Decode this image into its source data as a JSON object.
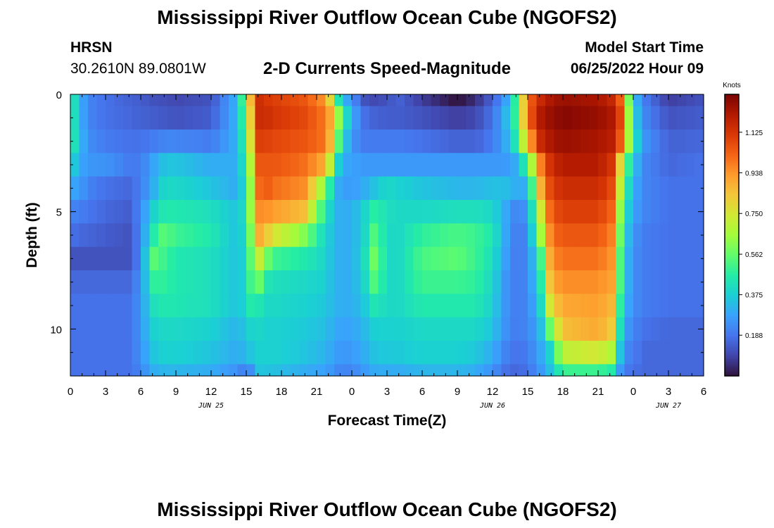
{
  "page": {
    "title_top": "Mississippi River Outflow Ocean Cube (NGOFS2)",
    "title_bottom": "Mississippi River Outflow Ocean Cube (NGOFS2)",
    "station": "HRSN",
    "coordinates": "30.2610N  89.0801W",
    "subtitle": "2-D Currents Speed-Magnitude",
    "model_start_label": "Model Start Time",
    "model_start_value": "06/25/2022 Hour 09"
  },
  "chart_data": {
    "type": "heatmap",
    "title": "2-D Currents Speed-Magnitude",
    "xlabel": "Forecast Time(Z)",
    "ylabel": "Depth (ft)",
    "x_unit": "hours since 06/25 00Z",
    "xlim": [
      0,
      54
    ],
    "ylim": [
      0,
      12
    ],
    "y_inverted": true,
    "x_ticks": [
      {
        "x": 0,
        "label": "0"
      },
      {
        "x": 3,
        "label": "3"
      },
      {
        "x": 6,
        "label": "6"
      },
      {
        "x": 9,
        "label": "9"
      },
      {
        "x": 12,
        "label": "12"
      },
      {
        "x": 15,
        "label": "15"
      },
      {
        "x": 18,
        "label": "18"
      },
      {
        "x": 21,
        "label": "21"
      },
      {
        "x": 24,
        "label": "0"
      },
      {
        "x": 27,
        "label": "3"
      },
      {
        "x": 30,
        "label": "6"
      },
      {
        "x": 33,
        "label": "9"
      },
      {
        "x": 36,
        "label": "12"
      },
      {
        "x": 39,
        "label": "15"
      },
      {
        "x": 42,
        "label": "18"
      },
      {
        "x": 45,
        "label": "21"
      },
      {
        "x": 48,
        "label": "0"
      },
      {
        "x": 51,
        "label": "3"
      },
      {
        "x": 54,
        "label": "6"
      }
    ],
    "date_labels": [
      {
        "x": 12,
        "label": "JUN 25"
      },
      {
        "x": 36,
        "label": "JUN 26"
      },
      {
        "x": 51,
        "label": "JUN 27"
      }
    ],
    "y_ticks": [
      {
        "y": 0,
        "label": "0"
      },
      {
        "y": 5,
        "label": "5"
      },
      {
        "y": 10,
        "label": "10"
      }
    ],
    "colorbar": {
      "unit": "Knots",
      "min": 0,
      "max": 1.3,
      "ticks": [
        "0.188",
        "0.375",
        "0.562",
        "0.750",
        "0.938",
        "1.125"
      ],
      "colormap": [
        "#30123b",
        "#4145ab",
        "#4675ed",
        "#39a2fc",
        "#1bcfd4",
        "#24eca6",
        "#61fc6c",
        "#a4fc3b",
        "#d1e834",
        "#f3c63a",
        "#fe9b2d",
        "#f36315",
        "#d93806",
        "#b11901",
        "#7a0402"
      ]
    },
    "depth_layers": [
      0,
      1,
      2,
      3,
      4,
      5,
      6,
      7,
      8,
      9,
      10,
      11,
      12
    ],
    "time_keyframes": [
      0,
      1,
      2,
      3,
      5,
      6,
      7,
      8,
      9,
      12,
      14,
      15,
      15.5,
      16,
      16.5,
      17.5,
      20,
      21.5,
      22.5,
      23,
      24,
      25,
      26,
      27,
      28,
      30,
      33,
      34.5,
      36,
      37,
      38,
      39,
      40,
      41,
      42,
      45,
      46.5,
      47,
      48,
      49,
      51,
      54
    ],
    "speed_grid": [
      [
        0.5,
        0.28,
        0.2,
        0.18,
        0.15,
        0.14,
        0.12,
        0.11,
        0.1,
        0.12,
        0.3,
        0.6,
        0.95,
        1.15,
        1.12,
        1.1,
        1.05,
        0.95,
        0.7,
        0.35,
        0.25,
        0.12,
        0.1,
        0.12,
        0.15,
        0.08,
        0.0,
        0.05,
        0.15,
        0.25,
        0.5,
        1.0,
        1.15,
        1.22,
        1.25,
        1.22,
        1.15,
        1.0,
        0.35,
        0.2,
        0.08,
        0.12
      ],
      [
        0.5,
        0.28,
        0.2,
        0.18,
        0.16,
        0.15,
        0.14,
        0.13,
        0.12,
        0.14,
        0.3,
        0.55,
        0.9,
        1.15,
        1.15,
        1.12,
        1.08,
        1.0,
        0.85,
        0.55,
        0.3,
        0.18,
        0.15,
        0.14,
        0.14,
        0.12,
        0.08,
        0.1,
        0.18,
        0.3,
        0.5,
        1.0,
        1.2,
        1.25,
        1.28,
        1.25,
        1.2,
        1.05,
        0.4,
        0.22,
        0.12,
        0.14
      ],
      [
        0.5,
        0.3,
        0.22,
        0.2,
        0.18,
        0.18,
        0.2,
        0.22,
        0.22,
        0.2,
        0.3,
        0.5,
        0.85,
        1.1,
        1.1,
        1.08,
        1.05,
        1.0,
        0.8,
        0.45,
        0.25,
        0.2,
        0.2,
        0.2,
        0.2,
        0.18,
        0.15,
        0.15,
        0.2,
        0.28,
        0.45,
        0.85,
        1.15,
        1.22,
        1.25,
        1.22,
        1.18,
        1.0,
        0.45,
        0.25,
        0.15,
        0.16
      ],
      [
        0.4,
        0.28,
        0.25,
        0.25,
        0.2,
        0.2,
        0.28,
        0.35,
        0.35,
        0.3,
        0.3,
        0.45,
        0.75,
        1.05,
        1.05,
        1.05,
        1.0,
        0.9,
        0.6,
        0.3,
        0.28,
        0.26,
        0.26,
        0.26,
        0.26,
        0.26,
        0.26,
        0.26,
        0.26,
        0.26,
        0.3,
        0.5,
        0.95,
        1.15,
        1.2,
        1.2,
        1.1,
        0.7,
        0.35,
        0.22,
        0.16,
        0.18
      ],
      [
        0.3,
        0.25,
        0.2,
        0.18,
        0.16,
        0.2,
        0.3,
        0.4,
        0.4,
        0.35,
        0.3,
        0.4,
        0.7,
        1.0,
        1.05,
        1.0,
        0.95,
        0.65,
        0.35,
        0.28,
        0.26,
        0.3,
        0.35,
        0.4,
        0.38,
        0.35,
        0.32,
        0.32,
        0.34,
        0.34,
        0.3,
        0.3,
        0.85,
        1.1,
        1.15,
        1.15,
        1.05,
        0.6,
        0.3,
        0.22,
        0.18,
        0.18
      ],
      [
        0.22,
        0.2,
        0.18,
        0.16,
        0.14,
        0.22,
        0.38,
        0.45,
        0.45,
        0.42,
        0.35,
        0.42,
        0.7,
        0.95,
        0.95,
        0.92,
        0.85,
        0.5,
        0.32,
        0.3,
        0.3,
        0.38,
        0.48,
        0.42,
        0.4,
        0.4,
        0.42,
        0.42,
        0.4,
        0.3,
        0.22,
        0.25,
        0.7,
        1.05,
        1.1,
        1.1,
        1.0,
        0.5,
        0.28,
        0.22,
        0.18,
        0.18
      ],
      [
        0.18,
        0.16,
        0.15,
        0.14,
        0.12,
        0.22,
        0.45,
        0.55,
        0.5,
        0.45,
        0.35,
        0.4,
        0.65,
        0.9,
        0.85,
        0.75,
        0.6,
        0.42,
        0.32,
        0.3,
        0.3,
        0.38,
        0.55,
        0.4,
        0.4,
        0.48,
        0.52,
        0.5,
        0.45,
        0.3,
        0.2,
        0.22,
        0.6,
        1.0,
        1.05,
        1.05,
        0.95,
        0.45,
        0.25,
        0.2,
        0.18,
        0.18
      ],
      [
        0.12,
        0.12,
        0.12,
        0.12,
        0.12,
        0.22,
        0.55,
        0.5,
        0.45,
        0.42,
        0.35,
        0.38,
        0.6,
        0.75,
        0.6,
        0.5,
        0.45,
        0.4,
        0.32,
        0.3,
        0.3,
        0.4,
        0.6,
        0.4,
        0.4,
        0.52,
        0.55,
        0.5,
        0.42,
        0.28,
        0.2,
        0.22,
        0.45,
        0.95,
        1.0,
        1.0,
        0.92,
        0.4,
        0.24,
        0.2,
        0.18,
        0.18
      ],
      [
        0.16,
        0.16,
        0.16,
        0.16,
        0.16,
        0.24,
        0.48,
        0.48,
        0.45,
        0.42,
        0.35,
        0.38,
        0.55,
        0.6,
        0.45,
        0.42,
        0.4,
        0.38,
        0.32,
        0.3,
        0.3,
        0.38,
        0.55,
        0.4,
        0.4,
        0.5,
        0.5,
        0.48,
        0.4,
        0.26,
        0.2,
        0.22,
        0.4,
        0.9,
        0.95,
        0.95,
        0.9,
        0.4,
        0.24,
        0.2,
        0.18,
        0.18
      ],
      [
        0.18,
        0.18,
        0.18,
        0.18,
        0.18,
        0.25,
        0.42,
        0.45,
        0.44,
        0.42,
        0.35,
        0.38,
        0.48,
        0.45,
        0.4,
        0.4,
        0.38,
        0.36,
        0.32,
        0.3,
        0.3,
        0.35,
        0.45,
        0.4,
        0.4,
        0.45,
        0.45,
        0.45,
        0.38,
        0.26,
        0.2,
        0.22,
        0.35,
        0.8,
        0.9,
        0.92,
        0.85,
        0.35,
        0.24,
        0.2,
        0.18,
        0.18
      ],
      [
        0.18,
        0.18,
        0.18,
        0.18,
        0.18,
        0.25,
        0.38,
        0.4,
        0.4,
        0.38,
        0.32,
        0.35,
        0.4,
        0.4,
        0.38,
        0.38,
        0.36,
        0.34,
        0.3,
        0.28,
        0.28,
        0.32,
        0.38,
        0.38,
        0.38,
        0.4,
        0.4,
        0.4,
        0.35,
        0.25,
        0.2,
        0.22,
        0.3,
        0.6,
        0.85,
        0.9,
        0.8,
        0.3,
        0.22,
        0.18,
        0.16,
        0.16
      ],
      [
        0.18,
        0.18,
        0.18,
        0.18,
        0.18,
        0.24,
        0.35,
        0.38,
        0.38,
        0.35,
        0.3,
        0.32,
        0.36,
        0.38,
        0.38,
        0.38,
        0.35,
        0.32,
        0.28,
        0.26,
        0.26,
        0.3,
        0.35,
        0.36,
        0.36,
        0.38,
        0.38,
        0.36,
        0.3,
        0.22,
        0.18,
        0.2,
        0.28,
        0.4,
        0.7,
        0.75,
        0.65,
        0.25,
        0.2,
        0.16,
        0.16,
        0.16
      ],
      [
        0.18,
        0.18,
        0.18,
        0.18,
        0.18,
        0.22,
        0.3,
        0.32,
        0.32,
        0.3,
        0.25,
        0.2,
        0.25,
        0.35,
        0.35,
        0.34,
        0.3,
        0.28,
        0.25,
        0.22,
        0.22,
        0.26,
        0.3,
        0.3,
        0.3,
        0.32,
        0.32,
        0.3,
        0.25,
        0.18,
        0.16,
        0.18,
        0.25,
        0.35,
        0.5,
        0.5,
        0.45,
        0.2,
        0.18,
        0.16,
        0.16,
        0.16
      ]
    ]
  }
}
